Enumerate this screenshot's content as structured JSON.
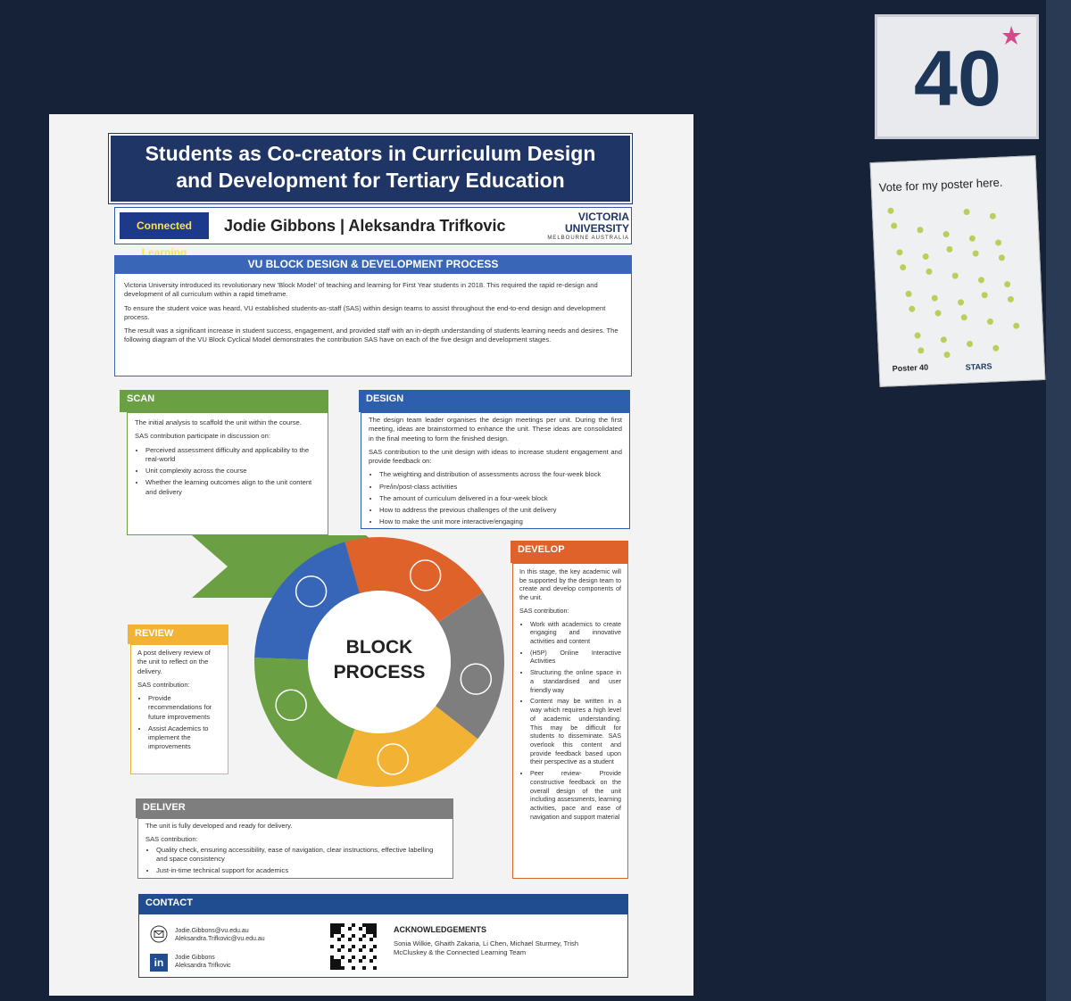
{
  "sign": {
    "number": "40"
  },
  "vote_card": {
    "title": "Vote for my poster here.",
    "label": "Poster 40",
    "logo": "STARS"
  },
  "poster": {
    "title": "Students as Co-creators in Curriculum Design and Development for Tertiary Education",
    "logo_left": "Connected Learning",
    "authors": "Jodie Gibbons | Aleksandra Trifkovic",
    "logo_right": {
      "name": "VICTORIA UNIVERSITY",
      "place": "MELBOURNE AUSTRALIA"
    },
    "intro": {
      "heading": "VU BLOCK DESIGN & DEVELOPMENT PROCESS",
      "paragraphs": [
        "Victoria University introduced its revolutionary new 'Block Model' of teaching and learning for First Year students in 2018. This required the rapid re-design and development of all curriculum within a rapid timeframe.",
        "To ensure the student voice was heard, VU established students-as-staff (SAS) within design teams to assist throughout the end-to-end design and development process.",
        "The result was a significant increase in student success, engagement, and provided staff with an in-depth understanding of students learning needs and desires. The following diagram of the VU Block Cyclical Model demonstrates the contribution SAS have on each of the five design and development stages."
      ]
    },
    "sections": {
      "scan": {
        "heading": "SCAN",
        "intro": "The initial analysis to scaffold the unit within the course.",
        "contribution_label": "SAS contribution participate in discussion on:",
        "items": [
          "Perceived assessment difficulty and applicability to the real-world",
          "Unit complexity across the course",
          "Whether the learning outcomes align to the unit content and delivery"
        ]
      },
      "design": {
        "heading": "DESIGN",
        "intro": "The design team leader organises the design meetings per unit. During the first meeting, ideas are brainstormed to enhance the unit. These ideas are consolidated in the final meeting to form the finished design.",
        "contribution_label": "SAS contribution to the unit design with ideas to increase student engagement and provide feedback on:",
        "items": [
          "The weighting and distribution of assessments across the four-week block",
          "Pre/in/post-class activities",
          "The amount of curriculum delivered in a four-week block",
          "How to address the previous challenges of the unit delivery",
          "How to make the unit more interactive/engaging"
        ]
      },
      "develop": {
        "heading": "DEVELOP",
        "intro": "In this stage, the key academic will be supported by the design team to create and develop components of the unit.",
        "contribution_label": "SAS contribution:",
        "items": [
          "Work with academics to create engaging and innovative activities and content",
          "(H5P) Online Interactive Activities",
          "Structuring the online space in a standardised and user friendly way",
          "Content may be written in a way which requires a high level of academic understanding. This may be difficult for students to disseminate. SAS overlook this content and provide feedback based upon their perspective as a student",
          "Peer review- Provide constructive feedback on the overall design of the unit including assessments, learning activities, pace and ease of navigation and support material"
        ]
      },
      "review": {
        "heading": "REVIEW",
        "intro": "A post delivery review of the unit to reflect on the delivery.",
        "contribution_label": "SAS contribution:",
        "items": [
          "Provide recommendations for future improvements",
          "Assist Academics to implement the improvements"
        ]
      },
      "deliver": {
        "heading": "DELIVER",
        "intro": "The unit is fully developed and ready for delivery.",
        "contribution_label": "SAS contribution:",
        "items": [
          "Quality check, ensuring accessibility, ease of navigation, clear instructions, effective labelling and space consistency",
          "Just-in-time technical support for academics"
        ]
      }
    },
    "diagram": {
      "center": "BLOCK PROCESS"
    },
    "contact": {
      "heading": "CONTACT",
      "emails": [
        "Jodie.Gibbons@vu.edu.au",
        "Aleksandra.Trifkovic@vu.edu.au"
      ],
      "linkedin": [
        "Jodie Gibbons",
        "Aleksandra Trifkovic"
      ]
    },
    "acknowledgements": {
      "heading": "ACKNOWLEDGEMENTS",
      "text": "Sonia Wilkie, Ghaith Zakaria, Li Chen, Michael Sturmey, Trish McCluskey & the Connected Learning Team"
    }
  }
}
